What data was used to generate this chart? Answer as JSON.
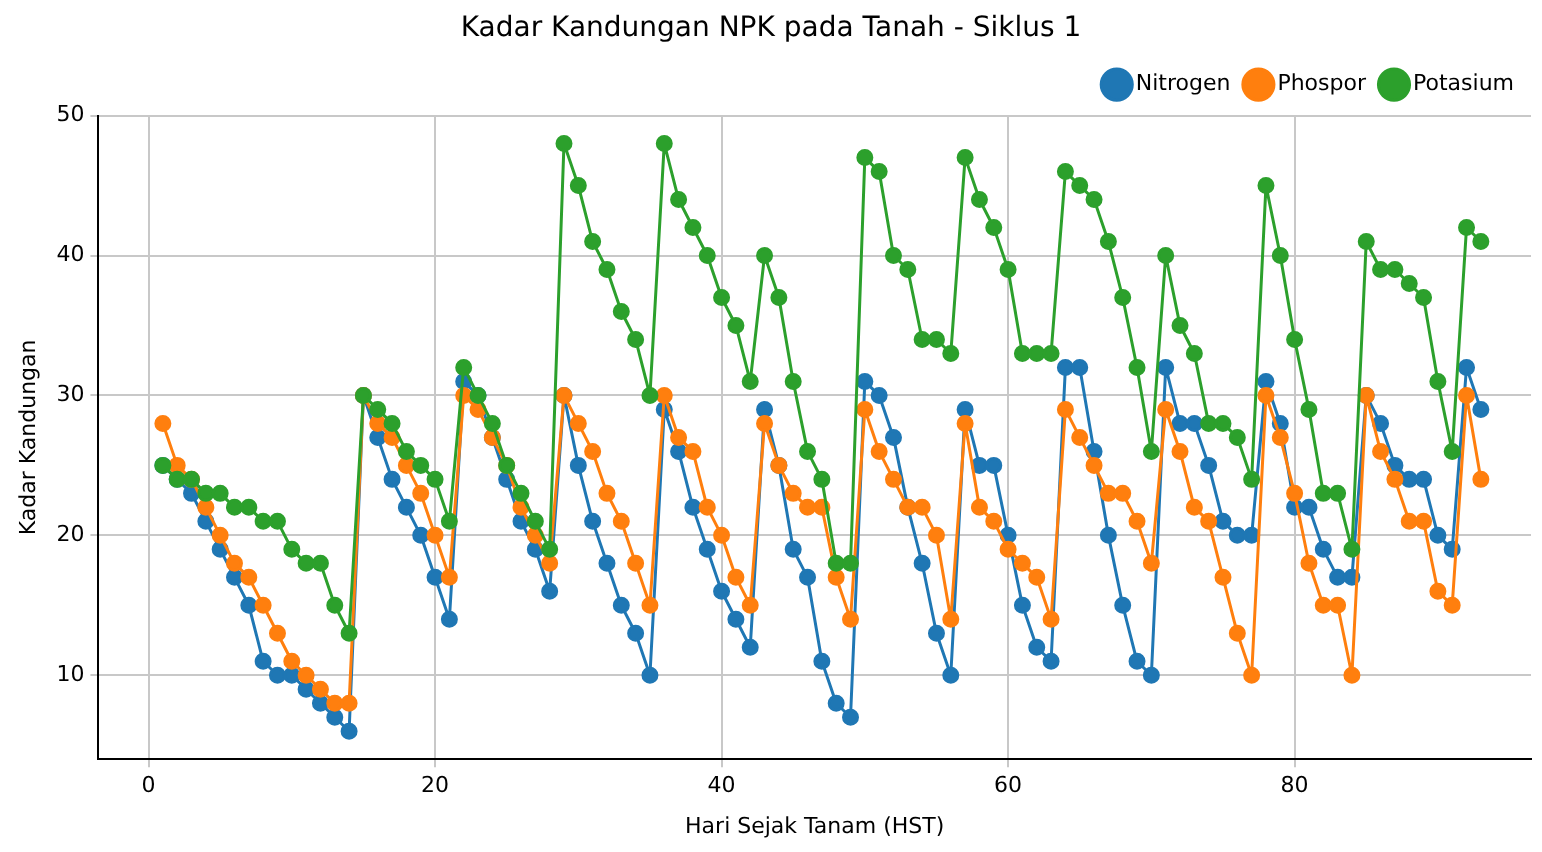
{
  "chart_data": {
    "type": "line",
    "title": "Kadar Kandungan NPK pada Tanah - Siklus 1",
    "xlabel": "Hari Sejak Tanam (HST)",
    "ylabel": "Kadar Kandungan",
    "x": [
      1,
      2,
      3,
      4,
      5,
      6,
      7,
      8,
      9,
      10,
      11,
      12,
      13,
      14,
      15,
      16,
      17,
      18,
      19,
      20,
      21,
      22,
      23,
      24,
      25,
      26,
      27,
      28,
      29,
      30,
      31,
      32,
      33,
      34,
      35,
      36,
      37,
      38,
      39,
      40,
      41,
      42,
      43,
      44,
      45,
      46,
      47,
      48,
      49,
      50,
      51,
      52,
      53,
      54,
      55,
      56,
      57,
      58,
      59,
      60,
      61,
      62,
      63,
      64,
      65,
      66,
      67,
      68,
      69,
      70,
      71,
      72,
      73,
      74,
      75,
      76,
      77,
      78,
      79,
      80,
      81,
      82,
      83,
      84,
      85,
      86,
      87,
      88,
      89,
      90,
      91,
      92,
      93
    ],
    "series": [
      {
        "name": "Nitrogen",
        "color": "#1f77b4",
        "values": [
          25,
          24,
          23,
          21,
          19,
          17,
          15,
          11,
          10,
          10,
          9,
          8,
          7,
          6,
          30,
          27,
          24,
          22,
          20,
          17,
          14,
          31,
          30,
          27,
          24,
          21,
          19,
          16,
          30,
          25,
          21,
          18,
          15,
          13,
          10,
          29,
          26,
          22,
          19,
          16,
          14,
          12,
          29,
          25,
          19,
          17,
          11,
          8,
          7,
          31,
          30,
          27,
          22,
          18,
          13,
          10,
          29,
          25,
          25,
          20,
          15,
          12,
          11,
          32,
          32,
          26,
          20,
          15,
          11,
          10,
          32,
          28,
          28,
          25,
          21,
          20,
          20,
          31,
          28,
          22,
          22,
          19,
          17,
          17,
          30,
          28,
          25,
          24,
          24,
          20,
          19,
          32,
          29
        ]
      },
      {
        "name": "Phospor",
        "color": "#ff7f0e",
        "values": [
          28,
          25,
          24,
          22,
          20,
          18,
          17,
          15,
          13,
          11,
          10,
          9,
          8,
          8,
          30,
          28,
          27,
          25,
          23,
          20,
          17,
          30,
          29,
          27,
          25,
          22,
          20,
          18,
          30,
          28,
          26,
          23,
          21,
          18,
          15,
          30,
          27,
          26,
          22,
          20,
          17,
          15,
          28,
          25,
          23,
          22,
          22,
          17,
          14,
          29,
          26,
          24,
          22,
          22,
          20,
          14,
          28,
          22,
          21,
          19,
          18,
          17,
          14,
          29,
          27,
          25,
          23,
          23,
          21,
          18,
          29,
          26,
          22,
          21,
          17,
          13,
          10,
          30,
          27,
          23,
          18,
          15,
          15,
          10,
          30,
          26,
          24,
          21,
          21,
          16,
          15,
          30,
          24
        ]
      },
      {
        "name": "Potasium",
        "color": "#2ca02c",
        "values": [
          25,
          24,
          24,
          23,
          23,
          22,
          22,
          21,
          21,
          19,
          18,
          18,
          15,
          13,
          30,
          29,
          28,
          26,
          25,
          24,
          21,
          32,
          30,
          28,
          25,
          23,
          21,
          19,
          48,
          45,
          41,
          39,
          36,
          34,
          30,
          48,
          44,
          42,
          40,
          37,
          35,
          31,
          40,
          37,
          31,
          26,
          24,
          18,
          18,
          47,
          46,
          40,
          39,
          34,
          34,
          33,
          47,
          44,
          42,
          39,
          33,
          33,
          33,
          46,
          45,
          44,
          41,
          37,
          32,
          26,
          40,
          35,
          33,
          28,
          28,
          27,
          24,
          45,
          40,
          34,
          29,
          23,
          23,
          19,
          41,
          39,
          39,
          38,
          37,
          31,
          26,
          42,
          41
        ]
      }
    ],
    "xlim": [
      -3.5,
      96.5
    ],
    "ylim": [
      4,
      50
    ],
    "xticks": [
      0,
      20,
      40,
      60,
      80
    ],
    "yticks": [
      10,
      20,
      30,
      40,
      50
    ],
    "grid": true,
    "legend": "top right",
    "marker": "circle",
    "line_style": "solid"
  }
}
